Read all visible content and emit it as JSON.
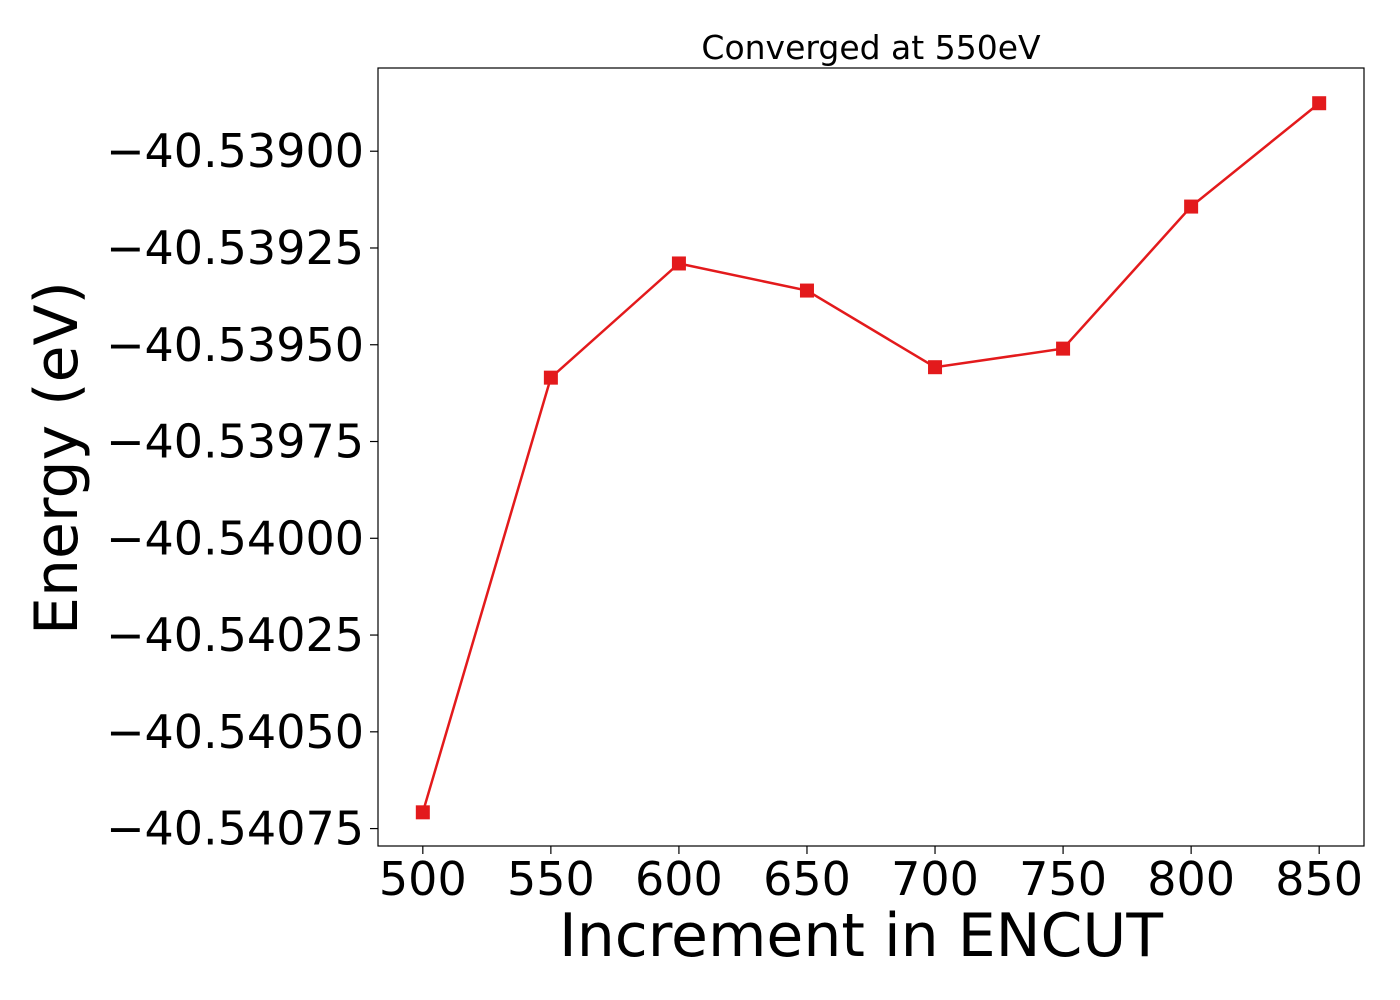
{
  "chart_data": {
    "type": "line",
    "title": "Converged at 550eV",
    "xlabel": "Increment in ENCUT",
    "ylabel": "Energy (eV)",
    "x": [
      500,
      550,
      600,
      650,
      700,
      750,
      800,
      850
    ],
    "series": [
      {
        "values": [
          -40.540708,
          -40.539585,
          -40.53929,
          -40.53936,
          -40.539558,
          -40.53951,
          -40.539143,
          -40.538876
        ],
        "color": "#e31a1c",
        "marker": "square"
      }
    ],
    "xlim": [
      482.5,
      867.5
    ],
    "ylim": [
      -40.540795,
      -40.538785
    ],
    "xticks": [
      500,
      550,
      600,
      650,
      700,
      750,
      800,
      850
    ],
    "xtick_labels": [
      "500",
      "550",
      "600",
      "650",
      "700",
      "750",
      "800",
      "850"
    ],
    "yticks": [
      -40.539,
      -40.53925,
      -40.5395,
      -40.53975,
      -40.54,
      -40.54025,
      -40.5405,
      -40.54075
    ],
    "ytick_labels": [
      "−40.53900",
      "−40.53925",
      "−40.53950",
      "−40.53975",
      "−40.54000",
      "−40.54025",
      "−40.54050",
      "−40.54075"
    ],
    "grid": false,
    "legend": false
  }
}
